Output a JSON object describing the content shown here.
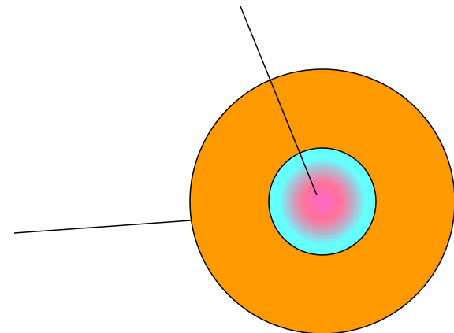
{
  "colors": {
    "background": "#ffffff",
    "outer_disc": "#ff9900",
    "inner_disc": "#66ffff",
    "inner_disc_center": "#ff66cc",
    "stroke": "#000000"
  },
  "diagram": {
    "shapes": [
      "outer-disc",
      "inner-disc",
      "leader-line-top",
      "leader-line-left"
    ]
  }
}
